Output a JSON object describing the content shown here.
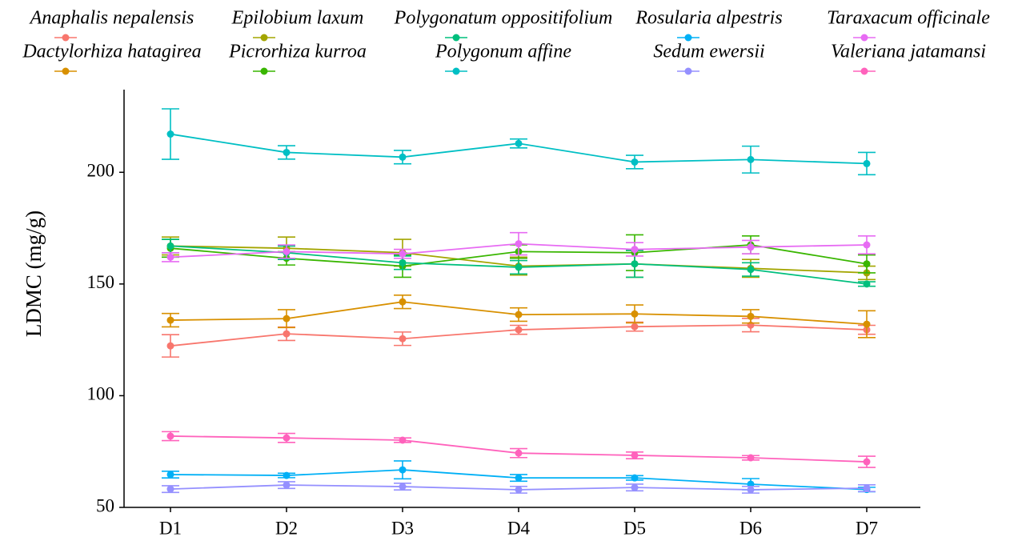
{
  "chart_data": {
    "type": "line",
    "y_label": "LDMC (mg/g)",
    "categories": [
      "D1",
      "D2",
      "D3",
      "D4",
      "D5",
      "D6",
      "D7"
    ],
    "ylim": [
      50,
      237
    ],
    "yticks": [
      50,
      100,
      150,
      200
    ],
    "legend": "top",
    "series": [
      {
        "name": "Anaphalis nepalensis",
        "color": "#F8766D",
        "values": [
          122.3,
          127.7,
          125.5,
          129.5,
          130.9,
          131.6,
          129.5
        ],
        "errors": [
          5,
          3,
          3,
          2,
          2,
          3,
          2
        ]
      },
      {
        "name": "Dactylorhiza hatagirea",
        "color": "#D89000",
        "values": [
          133.8,
          134.5,
          142,
          136.3,
          136.6,
          135.5,
          132
        ],
        "errors": [
          3,
          4,
          3,
          3,
          4,
          3,
          6
        ]
      },
      {
        "name": "Epilobium laxum",
        "color": "#A3A500",
        "values": [
          167,
          166,
          164,
          158,
          159,
          157,
          155
        ],
        "errors": [
          4,
          5,
          6,
          4,
          6,
          4,
          3
        ]
      },
      {
        "name": "Picrorhiza kurroa",
        "color": "#39B600",
        "values": [
          166,
          161.5,
          158,
          164.5,
          164,
          167.5,
          159
        ],
        "errors": [
          4,
          3,
          5,
          3,
          8,
          4,
          4
        ]
      },
      {
        "name": "Polygonatum oppositifolium",
        "color": "#00BF7D",
        "values": [
          167,
          164,
          159.5,
          157.5,
          159,
          156.5,
          150
        ],
        "errors": [
          3,
          3,
          3,
          3,
          6,
          3,
          1
        ]
      },
      {
        "name": "Polygonum affine",
        "color": "#00BFC4",
        "values": [
          217.1,
          208.9,
          206.8,
          212.9,
          204.6,
          205.7,
          203.9
        ],
        "errors": [
          11.3,
          3,
          3,
          2,
          3,
          6,
          5
        ]
      },
      {
        "name": "Rosularia alpestris",
        "color": "#00B0F6",
        "values": [
          64.7,
          64.3,
          66.8,
          63.2,
          63.2,
          60.4,
          58
        ],
        "errors": [
          1.5,
          1,
          4,
          1.5,
          1,
          2.5,
          1
        ]
      },
      {
        "name": "Sedum ewersii",
        "color": "#9590FF",
        "values": [
          58.2,
          60,
          59.3,
          57.9,
          58.9,
          57.9,
          58.6
        ],
        "errors": [
          1.5,
          1.5,
          1.5,
          1.5,
          1.5,
          1.5,
          1.5
        ]
      },
      {
        "name": "Taraxacum officinale",
        "color": "#E76BF3",
        "values": [
          162,
          164.5,
          163.5,
          168,
          165.5,
          166.5,
          167.5
        ],
        "errors": [
          2,
          3,
          2,
          5,
          3,
          3,
          4
        ]
      },
      {
        "name": "Valeriana jatamansi",
        "color": "#FF62BC",
        "values": [
          81.9,
          81.1,
          80.1,
          74.3,
          73.3,
          72.2,
          70.4
        ],
        "errors": [
          2,
          2,
          1,
          2,
          1.5,
          1,
          2.5
        ]
      }
    ]
  }
}
